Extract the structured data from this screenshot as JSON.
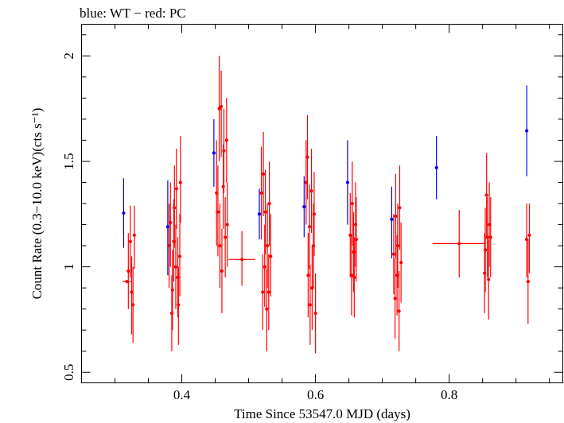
{
  "chart_data": {
    "type": "scatter",
    "title": "blue: WT − red: PC",
    "xlabel": "Time Since 53547.0 MJD (days)",
    "ylabel": "Count Rate (0.3−10.0 keV)(cts s⁻¹)",
    "xlim": [
      0.25,
      0.97
    ],
    "ylim": [
      0.45,
      2.15
    ],
    "x_ticks": [
      0.4,
      0.6,
      0.8
    ],
    "x_tick_labels": [
      "0.4",
      "0.6",
      "0.8"
    ],
    "y_ticks": [
      0.5,
      1.0,
      1.5,
      2.0
    ],
    "y_tick_labels": [
      "0.5",
      "1",
      "1.5",
      "2"
    ],
    "grid": false,
    "series": [
      {
        "color": "#0000ff",
        "points": [
          {
            "x": 0.313,
            "y": 1.255,
            "ylo": 1.09,
            "yhi": 1.42
          },
          {
            "x": 0.379,
            "y": 1.19,
            "ylo": 0.96,
            "yhi": 1.41
          },
          {
            "x": 0.448,
            "y": 1.54,
            "ylo": 1.38,
            "yhi": 1.7
          },
          {
            "x": 0.516,
            "y": 1.25,
            "ylo": 1.13,
            "yhi": 1.37
          },
          {
            "x": 0.583,
            "y": 1.285,
            "ylo": 1.14,
            "yhi": 1.43
          },
          {
            "x": 0.648,
            "y": 1.4,
            "ylo": 1.2,
            "yhi": 1.6
          },
          {
            "x": 0.714,
            "y": 1.225,
            "ylo": 1.04,
            "yhi": 1.38
          },
          {
            "x": 0.781,
            "y": 1.47,
            "ylo": 1.32,
            "yhi": 1.62
          },
          {
            "x": 0.916,
            "y": 1.645,
            "ylo": 1.43,
            "yhi": 1.86
          }
        ]
      },
      {
        "color": "#ff0000",
        "points": [
          {
            "x": 0.318,
            "y": 0.93,
            "ylo": 0.93,
            "yhi": 0.93,
            "xlo": 0.311,
            "xhi": 0.324
          },
          {
            "x": 0.32,
            "y": 0.98,
            "ylo": 0.8,
            "yhi": 1.16
          },
          {
            "x": 0.323,
            "y": 1.12,
            "ylo": 0.95,
            "yhi": 1.29
          },
          {
            "x": 0.325,
            "y": 0.88,
            "ylo": 0.68,
            "yhi": 1.05
          },
          {
            "x": 0.327,
            "y": 0.82,
            "ylo": 0.64,
            "yhi": 1.0
          },
          {
            "x": 0.329,
            "y": 1.15,
            "ylo": 0.99,
            "yhi": 1.29
          },
          {
            "x": 0.381,
            "y": 1.1,
            "ylo": 0.9,
            "yhi": 1.3
          },
          {
            "x": 0.383,
            "y": 1.21,
            "ylo": 1.0,
            "yhi": 1.4
          },
          {
            "x": 0.385,
            "y": 0.78,
            "ylo": 0.6,
            "yhi": 0.96
          },
          {
            "x": 0.386,
            "y": 0.89,
            "ylo": 0.7,
            "yhi": 1.08
          },
          {
            "x": 0.388,
            "y": 1.12,
            "ylo": 0.93,
            "yhi": 1.32
          },
          {
            "x": 0.389,
            "y": 1.28,
            "ylo": 1.09,
            "yhi": 1.48
          },
          {
            "x": 0.391,
            "y": 1.0,
            "ylo": 0.8,
            "yhi": 1.2
          },
          {
            "x": 0.392,
            "y": 1.37,
            "ylo": 1.18,
            "yhi": 1.56
          },
          {
            "x": 0.394,
            "y": 0.95,
            "ylo": 0.76,
            "yhi": 1.14
          },
          {
            "x": 0.395,
            "y": 0.82,
            "ylo": 0.63,
            "yhi": 1.0
          },
          {
            "x": 0.397,
            "y": 1.05,
            "ylo": 0.86,
            "yhi": 1.25
          },
          {
            "x": 0.398,
            "y": 1.4,
            "ylo": 1.21,
            "yhi": 1.62
          },
          {
            "x": 0.452,
            "y": 1.35,
            "ylo": 1.1,
            "yhi": 1.6
          },
          {
            "x": 0.454,
            "y": 1.26,
            "ylo": 1.05,
            "yhi": 1.48
          },
          {
            "x": 0.456,
            "y": 1.75,
            "ylo": 1.5,
            "yhi": 2.0
          },
          {
            "x": 0.457,
            "y": 1.1,
            "ylo": 0.9,
            "yhi": 1.3
          },
          {
            "x": 0.459,
            "y": 1.76,
            "ylo": 1.52,
            "yhi": 1.93
          },
          {
            "x": 0.46,
            "y": 0.98,
            "ylo": 0.78,
            "yhi": 1.18
          },
          {
            "x": 0.462,
            "y": 1.38,
            "ylo": 1.18,
            "yhi": 1.58
          },
          {
            "x": 0.463,
            "y": 1.55,
            "ylo": 1.35,
            "yhi": 1.75
          },
          {
            "x": 0.465,
            "y": 1.14,
            "ylo": 0.95,
            "yhi": 1.33
          },
          {
            "x": 0.467,
            "y": 1.6,
            "ylo": 1.4,
            "yhi": 1.8
          },
          {
            "x": 0.468,
            "y": 1.2,
            "ylo": 1.0,
            "yhi": 1.4
          },
          {
            "x": 0.49,
            "y": 1.035,
            "ylo": 0.91,
            "yhi": 1.17,
            "xlo": 0.47,
            "xhi": 0.51
          },
          {
            "x": 0.519,
            "y": 1.35,
            "ylo": 1.13,
            "yhi": 1.57
          },
          {
            "x": 0.521,
            "y": 0.88,
            "ylo": 0.7,
            "yhi": 1.06
          },
          {
            "x": 0.522,
            "y": 1.44,
            "ylo": 1.24,
            "yhi": 1.64
          },
          {
            "x": 0.524,
            "y": 1.0,
            "ylo": 0.81,
            "yhi": 1.2
          },
          {
            "x": 0.525,
            "y": 1.26,
            "ylo": 1.06,
            "yhi": 1.46
          },
          {
            "x": 0.527,
            "y": 0.8,
            "ylo": 0.6,
            "yhi": 0.99
          },
          {
            "x": 0.528,
            "y": 1.1,
            "ylo": 0.9,
            "yhi": 1.3
          },
          {
            "x": 0.53,
            "y": 0.88,
            "ylo": 0.7,
            "yhi": 1.06
          },
          {
            "x": 0.531,
            "y": 1.3,
            "ylo": 1.1,
            "yhi": 1.5
          },
          {
            "x": 0.533,
            "y": 1.05,
            "ylo": 0.86,
            "yhi": 1.25
          },
          {
            "x": 0.586,
            "y": 1.4,
            "ylo": 1.2,
            "yhi": 1.6
          },
          {
            "x": 0.588,
            "y": 1.52,
            "ylo": 1.32,
            "yhi": 1.72
          },
          {
            "x": 0.589,
            "y": 0.96,
            "ylo": 0.76,
            "yhi": 1.16
          },
          {
            "x": 0.591,
            "y": 1.19,
            "ylo": 0.99,
            "yhi": 1.39
          },
          {
            "x": 0.592,
            "y": 0.82,
            "ylo": 0.63,
            "yhi": 1.01
          },
          {
            "x": 0.594,
            "y": 1.36,
            "ylo": 1.16,
            "yhi": 1.56
          },
          {
            "x": 0.595,
            "y": 0.9,
            "ylo": 0.7,
            "yhi": 1.1
          },
          {
            "x": 0.597,
            "y": 1.1,
            "ylo": 0.9,
            "yhi": 1.3
          },
          {
            "x": 0.598,
            "y": 1.25,
            "ylo": 1.05,
            "yhi": 1.45
          },
          {
            "x": 0.6,
            "y": 0.78,
            "ylo": 0.59,
            "yhi": 0.97
          },
          {
            "x": 0.652,
            "y": 1.15,
            "ylo": 0.95,
            "yhi": 1.35
          },
          {
            "x": 0.654,
            "y": 0.96,
            "ylo": 0.77,
            "yhi": 1.15
          },
          {
            "x": 0.655,
            "y": 1.3,
            "ylo": 1.1,
            "yhi": 1.5
          },
          {
            "x": 0.657,
            "y": 1.07,
            "ylo": 0.88,
            "yhi": 1.26
          },
          {
            "x": 0.658,
            "y": 0.95,
            "ylo": 0.76,
            "yhi": 1.14
          },
          {
            "x": 0.66,
            "y": 1.2,
            "ylo": 1.0,
            "yhi": 1.4
          },
          {
            "x": 0.661,
            "y": 1.13,
            "ylo": 0.93,
            "yhi": 1.33
          },
          {
            "x": 0.717,
            "y": 1.06,
            "ylo": 0.87,
            "yhi": 1.25
          },
          {
            "x": 0.719,
            "y": 0.85,
            "ylo": 0.66,
            "yhi": 1.04
          },
          {
            "x": 0.72,
            "y": 1.24,
            "ylo": 1.04,
            "yhi": 1.44
          },
          {
            "x": 0.722,
            "y": 0.96,
            "ylo": 0.77,
            "yhi": 1.15
          },
          {
            "x": 0.723,
            "y": 1.1,
            "ylo": 0.9,
            "yhi": 1.3
          },
          {
            "x": 0.725,
            "y": 0.79,
            "ylo": 0.6,
            "yhi": 0.98
          },
          {
            "x": 0.726,
            "y": 1.28,
            "ylo": 1.08,
            "yhi": 1.48
          },
          {
            "x": 0.728,
            "y": 1.02,
            "ylo": 0.83,
            "yhi": 1.21
          },
          {
            "x": 0.815,
            "y": 1.11,
            "ylo": 0.95,
            "yhi": 1.27,
            "xlo": 0.775,
            "xhi": 0.855
          },
          {
            "x": 0.853,
            "y": 0.97,
            "ylo": 0.78,
            "yhi": 1.16
          },
          {
            "x": 0.854,
            "y": 1.08,
            "ylo": 0.88,
            "yhi": 1.28
          },
          {
            "x": 0.856,
            "y": 1.34,
            "ylo": 1.14,
            "yhi": 1.54
          },
          {
            "x": 0.857,
            "y": 1.14,
            "ylo": 0.95,
            "yhi": 1.33
          },
          {
            "x": 0.859,
            "y": 0.94,
            "ylo": 0.75,
            "yhi": 1.13
          },
          {
            "x": 0.86,
            "y": 1.2,
            "ylo": 1.0,
            "yhi": 1.4
          },
          {
            "x": 0.862,
            "y": 1.14,
            "ylo": 0.95,
            "yhi": 1.33
          },
          {
            "x": 0.916,
            "y": 1.13,
            "ylo": 0.95,
            "yhi": 1.3
          },
          {
            "x": 0.918,
            "y": 0.93,
            "ylo": 0.73,
            "yhi": 1.13
          },
          {
            "x": 0.92,
            "y": 1.15,
            "ylo": 0.97,
            "yhi": 1.3
          }
        ]
      }
    ]
  }
}
